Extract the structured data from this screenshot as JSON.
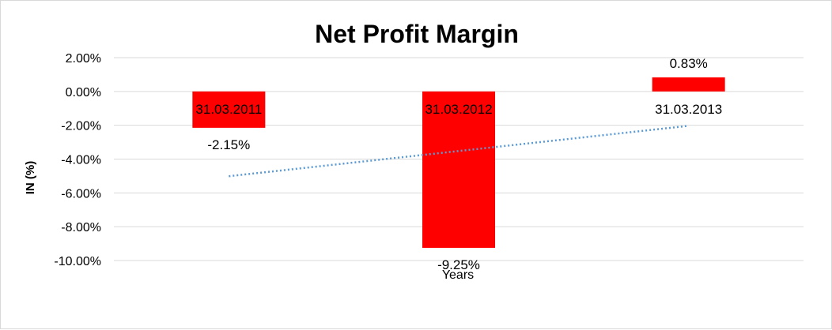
{
  "chart_data": {
    "type": "bar",
    "title": "Net Profit Margin",
    "xlabel": "Years",
    "ylabel": "IN (%)",
    "categories": [
      "31.03.2011",
      "31.03.2012",
      "31.03.2013"
    ],
    "values": [
      -2.15,
      -9.25,
      0.83
    ],
    "value_labels": [
      "-2.15%",
      "-9.25%",
      "0.83%"
    ],
    "ylim": [
      -10,
      2
    ],
    "y_ticks": [
      2,
      0,
      -2,
      -4,
      -6,
      -8,
      -10
    ],
    "y_tick_labels": [
      "2.00%",
      "0.00%",
      "-2.00%",
      "-4.00%",
      "-6.00%",
      "-8.00%",
      "-10.00%"
    ],
    "grid": true,
    "legend": "none",
    "trendline": {
      "type": "linear",
      "style": "dotted"
    },
    "colors": {
      "bar": "#ff0000",
      "trendline": "#5b9bd5",
      "grid": "#d9d9d9",
      "text": "#000000"
    }
  }
}
